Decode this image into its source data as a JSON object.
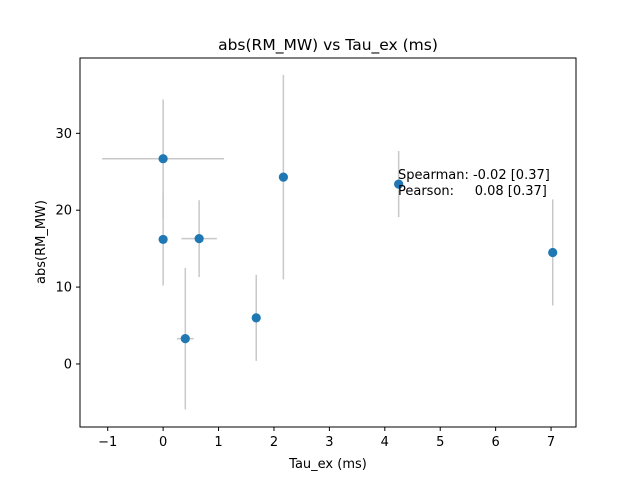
{
  "chart_data": {
    "type": "scatter",
    "title": "abs(RM_MW) vs Tau_ex (ms)",
    "xlabel": "Tau_ex (ms)",
    "ylabel": "abs(RM_MW)",
    "xlim": [
      -1.5,
      7.45
    ],
    "ylim": [
      -8.2,
      39.8
    ],
    "xticks": [
      -1,
      0,
      1,
      2,
      3,
      4,
      5,
      6,
      7
    ],
    "yticks": [
      0,
      10,
      20,
      30
    ],
    "grid": false,
    "point_color": "#1f77b4",
    "errorbar_color": "#c8c8c8",
    "points": [
      {
        "x": 0.0,
        "y": 26.7,
        "xerr": 1.1,
        "yerr": 7.7
      },
      {
        "x": 0.0,
        "y": 16.2,
        "xerr": 0.0,
        "yerr": 6.0
      },
      {
        "x": 0.65,
        "y": 16.3,
        "xerr": 0.32,
        "yerr": 5.0
      },
      {
        "x": 0.4,
        "y": 3.3,
        "xerr": 0.15,
        "yerr": 9.2
      },
      {
        "x": 1.68,
        "y": 6.0,
        "xerr": 0.0,
        "yerr": 5.6
      },
      {
        "x": 2.17,
        "y": 24.3,
        "xerr": 0.0,
        "yerr": 13.3
      },
      {
        "x": 4.25,
        "y": 23.4,
        "xerr": 0.0,
        "yerr": 4.3
      },
      {
        "x": 7.03,
        "y": 14.5,
        "xerr": 0.0,
        "yerr": 6.9
      }
    ],
    "annotations": [
      {
        "text": "Spearman: -0.02 [0.37]"
      },
      {
        "text": "Pearson:     0.08 [0.37]"
      }
    ]
  }
}
